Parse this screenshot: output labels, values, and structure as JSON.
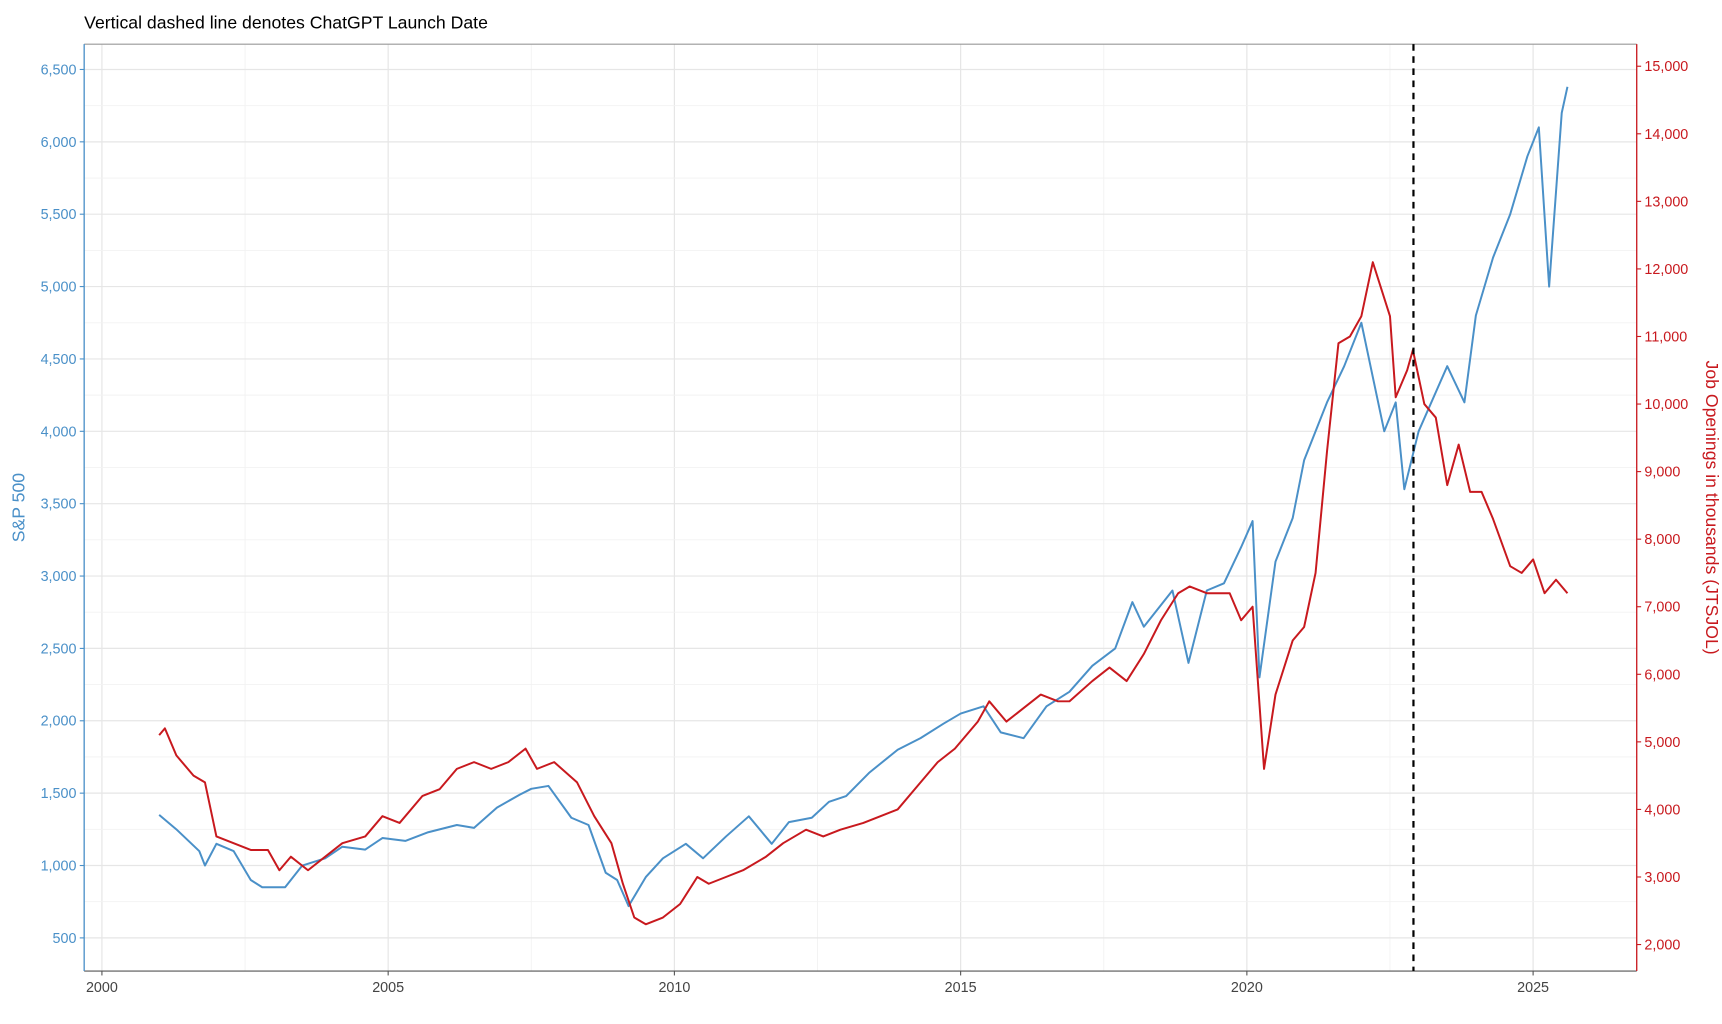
{
  "chart_data": {
    "type": "line",
    "subtitle": "Vertical dashed line denotes ChatGPT Launch Date",
    "ylabel": "S&P 500",
    "y2label": "Job Openings in thousands (JTSJOL)",
    "xlim": [
      1999.69,
      2026.81
    ],
    "xticks": [
      2000,
      2005,
      2010,
      2015,
      2020,
      2025
    ],
    "ylim": [
      271,
      6675
    ],
    "yticks": [
      500,
      {
        "value": 1000,
        "label": "1,000"
      },
      {
        "value": 1500,
        "label": "1,500"
      },
      {
        "value": 2000,
        "label": "2,000"
      },
      {
        "value": 2500,
        "label": "2,500"
      },
      {
        "value": 3000,
        "label": "3,000"
      },
      {
        "value": 3500,
        "label": "3,500"
      },
      {
        "value": 4000,
        "label": "4,000"
      },
      {
        "value": 4500,
        "label": "4,500"
      },
      {
        "value": 5000,
        "label": "5,000"
      },
      {
        "value": 5500,
        "label": "5,500"
      },
      {
        "value": 6000,
        "label": "6,000"
      },
      {
        "value": 6500,
        "label": "6,500"
      }
    ],
    "y2lim": [
      1608,
      15327
    ],
    "y2ticks": [
      {
        "value": 2000,
        "label": "2,000"
      },
      {
        "value": 3000,
        "label": "3,000"
      },
      {
        "value": 4000,
        "label": "4,000"
      },
      {
        "value": 5000,
        "label": "5,000"
      },
      {
        "value": 6000,
        "label": "6,000"
      },
      {
        "value": 7000,
        "label": "7,000"
      },
      {
        "value": 8000,
        "label": "8,000"
      },
      {
        "value": 9000,
        "label": "9,000"
      },
      {
        "value": 10000,
        "label": "10,000"
      },
      {
        "value": 11000,
        "label": "11,000"
      },
      {
        "value": 12000,
        "label": "12,000"
      },
      {
        "value": 13000,
        "label": "13,000"
      },
      {
        "value": 14000,
        "label": "14,000"
      },
      {
        "value": 15000,
        "label": "15,000"
      }
    ],
    "grid": true,
    "vline_x": 2022.91,
    "series": [
      {
        "axis": "y",
        "color": "#4a90c8",
        "x": [
          2001.0,
          2001.3,
          2001.7,
          2001.8,
          2002.0,
          2002.3,
          2002.6,
          2002.8,
          2003.2,
          2003.5,
          2003.9,
          2004.2,
          2004.6,
          2004.9,
          2005.3,
          2005.7,
          2006.2,
          2006.5,
          2006.9,
          2007.3,
          2007.5,
          2007.8,
          2008.2,
          2008.5,
          2008.8,
          2009.0,
          2009.2,
          2009.5,
          2009.8,
          2010.2,
          2010.5,
          2010.9,
          2011.3,
          2011.7,
          2012.0,
          2012.4,
          2012.7,
          2013.0,
          2013.4,
          2013.9,
          2014.3,
          2014.7,
          2015.0,
          2015.4,
          2015.7,
          2016.1,
          2016.5,
          2016.9,
          2017.3,
          2017.7,
          2018.0,
          2018.2,
          2018.7,
          2018.98,
          2019.3,
          2019.6,
          2019.9,
          2020.1,
          2020.22,
          2020.5,
          2020.8,
          2021.0,
          2021.4,
          2021.7,
          2022.0,
          2022.4,
          2022.6,
          2022.75,
          2023.0,
          2023.5,
          2023.8,
          2024.0,
          2024.3,
          2024.6,
          2024.9,
          2025.1,
          2025.28,
          2025.5,
          2025.6
        ],
        "values": [
          1350,
          1250,
          1100,
          1000,
          1150,
          1100,
          900,
          850,
          850,
          1000,
          1050,
          1130,
          1110,
          1190,
          1170,
          1230,
          1280,
          1260,
          1400,
          1490,
          1530,
          1550,
          1330,
          1280,
          950,
          900,
          720,
          920,
          1050,
          1150,
          1050,
          1200,
          1340,
          1150,
          1300,
          1330,
          1440,
          1480,
          1640,
          1800,
          1880,
          1980,
          2050,
          2100,
          1920,
          1880,
          2100,
          2200,
          2380,
          2500,
          2820,
          2650,
          2900,
          2400,
          2900,
          2950,
          3200,
          3380,
          2300,
          3100,
          3400,
          3800,
          4200,
          4450,
          4750,
          4000,
          4200,
          3600,
          4000,
          4450,
          4200,
          4800,
          5200,
          5500,
          5900,
          6100,
          5000,
          6200,
          6380
        ]
      },
      {
        "axis": "y2",
        "color": "#c8191e",
        "x": [
          2001.0,
          2001.1,
          2001.3,
          2001.6,
          2001.8,
          2002.0,
          2002.3,
          2002.6,
          2002.9,
          2003.1,
          2003.3,
          2003.6,
          2003.9,
          2004.2,
          2004.6,
          2004.9,
          2005.2,
          2005.6,
          2005.9,
          2006.2,
          2006.5,
          2006.8,
          2007.1,
          2007.4,
          2007.6,
          2007.9,
          2008.3,
          2008.6,
          2008.9,
          2009.1,
          2009.3,
          2009.5,
          2009.8,
          2010.1,
          2010.4,
          2010.6,
          2010.9,
          2011.2,
          2011.6,
          2011.9,
          2012.3,
          2012.6,
          2012.9,
          2013.3,
          2013.6,
          2013.9,
          2014.3,
          2014.6,
          2014.9,
          2015.3,
          2015.5,
          2015.8,
          2016.1,
          2016.4,
          2016.7,
          2016.9,
          2017.3,
          2017.6,
          2017.9,
          2018.2,
          2018.5,
          2018.8,
          2019.0,
          2019.3,
          2019.7,
          2019.9,
          2020.1,
          2020.3,
          2020.5,
          2020.8,
          2021.0,
          2021.2,
          2021.4,
          2021.6,
          2021.8,
          2022.0,
          2022.2,
          2022.5,
          2022.6,
          2022.8,
          2022.9,
          2023.1,
          2023.3,
          2023.5,
          2023.7,
          2023.9,
          2024.1,
          2024.3,
          2024.6,
          2024.8,
          2025.0,
          2025.2,
          2025.4,
          2025.6
        ],
        "values": [
          5100,
          5200,
          4800,
          4500,
          4400,
          3600,
          3500,
          3400,
          3400,
          3100,
          3300,
          3100,
          3300,
          3500,
          3600,
          3900,
          3800,
          4200,
          4300,
          4600,
          4700,
          4600,
          4700,
          4900,
          4600,
          4700,
          4400,
          3900,
          3500,
          2900,
          2400,
          2300,
          2400,
          2600,
          3000,
          2900,
          3000,
          3100,
          3300,
          3500,
          3700,
          3600,
          3700,
          3800,
          3900,
          4000,
          4400,
          4700,
          4900,
          5300,
          5600,
          5300,
          5500,
          5700,
          5600,
          5600,
          5900,
          6100,
          5900,
          6300,
          6800,
          7200,
          7300,
          7200,
          7200,
          6800,
          7000,
          4600,
          5700,
          6500,
          6700,
          7500,
          9300,
          10900,
          11000,
          11300,
          12100,
          11300,
          10100,
          10500,
          10800,
          10000,
          9800,
          8800,
          9400,
          8700,
          8700,
          8300,
          7600,
          7500,
          7700,
          7200,
          7400,
          7200
        ]
      }
    ]
  }
}
